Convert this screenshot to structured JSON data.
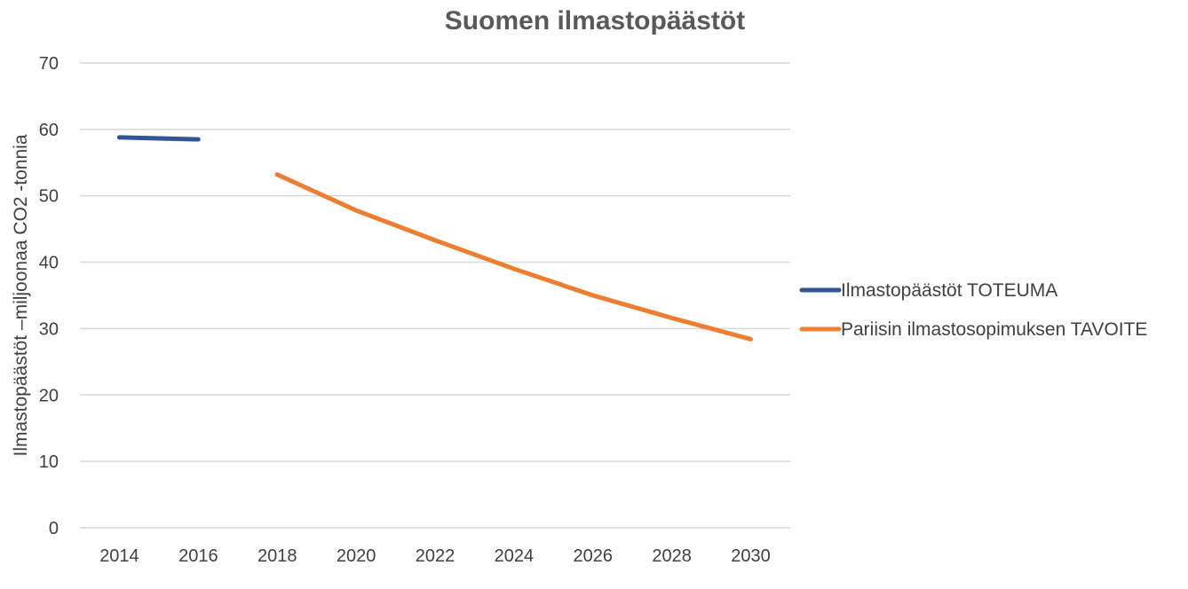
{
  "chart_data": {
    "type": "line",
    "title": "Suomen ilmastopäästöt",
    "xlabel": "",
    "ylabel": "Ilmastopäästöt –miljoonaa CO2 -tonnia",
    "categories": [
      "2014",
      "2016",
      "2018",
      "2020",
      "2022",
      "2024",
      "2026",
      "2028",
      "2030"
    ],
    "ylim": [
      0,
      70
    ],
    "yticks": [
      0,
      10,
      20,
      30,
      40,
      50,
      60,
      70
    ],
    "grid": true,
    "legend_position": "right",
    "series": [
      {
        "name": "Ilmastopäästöt TOTEUMA",
        "color": "#2f5597",
        "values": [
          58.8,
          58.5,
          null,
          null,
          null,
          null,
          null,
          null,
          null
        ]
      },
      {
        "name": "Pariisin ilmastosopimuksen TAVOITE",
        "color": "#ed7d31",
        "values": [
          null,
          null,
          53.2,
          47.8,
          43.3,
          39.0,
          35.0,
          31.6,
          28.4
        ]
      }
    ]
  }
}
